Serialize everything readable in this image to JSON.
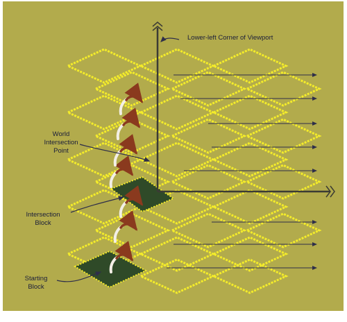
{
  "diagram": {
    "labels": {
      "corner": "Lower-left Corner of Viewport",
      "world_point_1": "World",
      "world_point_2": "Intersection",
      "world_point_3": "Point",
      "intersection_block_1": "Intersection",
      "intersection_block_2": "Block",
      "starting_block_1": "Starting",
      "starting_block_2": "Block"
    },
    "colors": {
      "background": "#b2ab4c",
      "tile_outline": "#f4ec2a",
      "axis": "#3b3b34",
      "arrow": "#2e2e4a",
      "block_fill": "#2f4a28",
      "curve_arrow": "#8a3a1e",
      "label_text": "#1a1d3a"
    },
    "icons": [
      "arrow-right-icon",
      "axis-break-icon",
      "curved-arrow-icon"
    ]
  }
}
